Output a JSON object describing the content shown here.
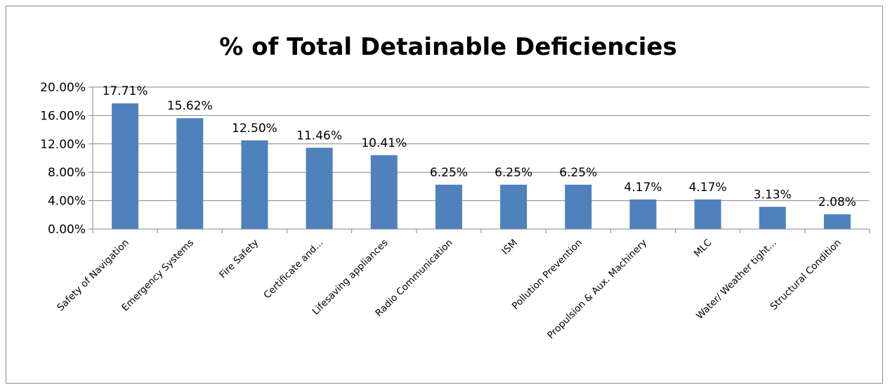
{
  "chart_data": {
    "type": "bar",
    "title": "% of Total Detainable Deficiencies",
    "xlabel": "",
    "ylabel": "",
    "ylim": [
      0,
      20
    ],
    "yticks": [
      "0.00%",
      "4.00%",
      "8.00%",
      "12.00%",
      "16.00%",
      "20.00%"
    ],
    "grid": true,
    "legend": "none",
    "bar_color": "#4f81bd",
    "categories": [
      "Safety of Navigation",
      "Emergency Systems",
      "Fire Safety",
      "Certificate and...",
      "Lifesaving appliances",
      "Radio Communication",
      "ISM",
      "Pollution Prevention",
      "Propulsion & Aux. Machinery",
      "MLC",
      "Water/ Weather tight...",
      "Structural Condition"
    ],
    "values": [
      17.71,
      15.62,
      12.5,
      11.46,
      10.41,
      6.25,
      6.25,
      6.25,
      4.17,
      4.17,
      3.13,
      2.08
    ],
    "data_labels": [
      "17.71%",
      "15.62%",
      "12.50%",
      "11.46%",
      "10.41%",
      "6.25%",
      "6.25%",
      "6.25%",
      "4.17%",
      "4.17%",
      "3.13%",
      "2.08%"
    ]
  }
}
